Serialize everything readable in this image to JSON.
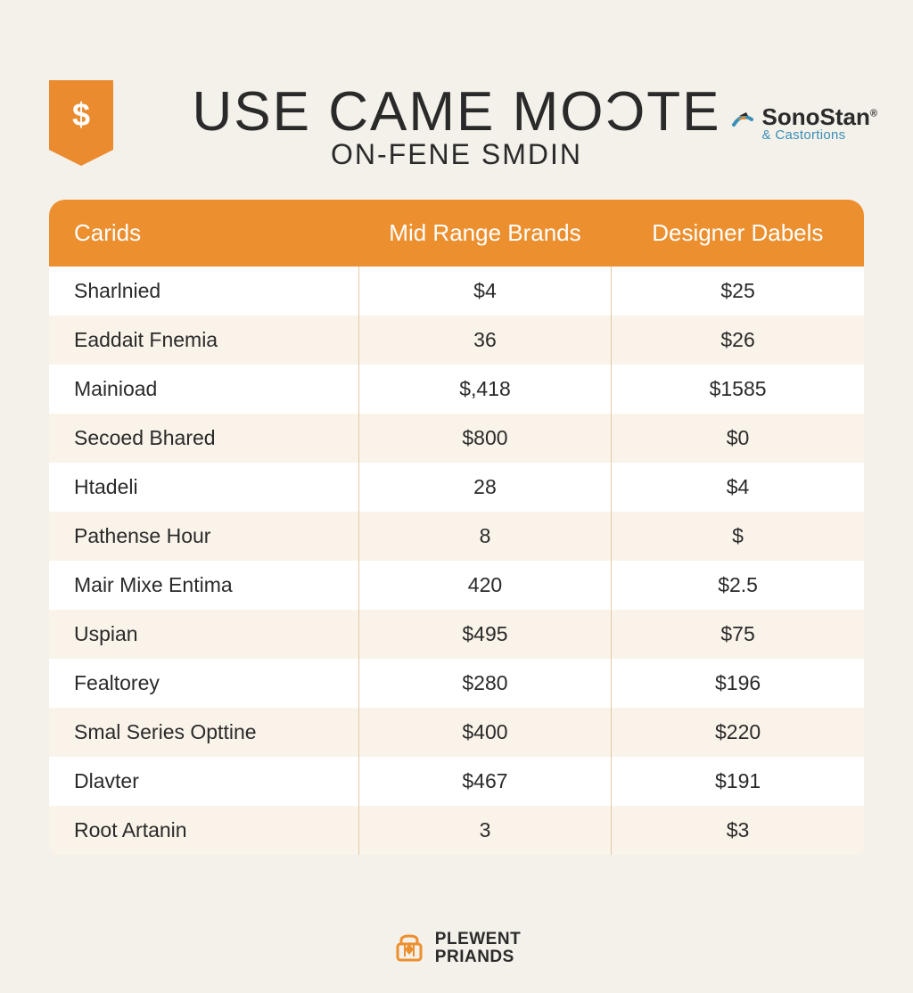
{
  "badge": {
    "symbol": "$"
  },
  "brand": {
    "name": "SonoStan",
    "sub": "& Castortions",
    "name_color": "#2b2b2b",
    "sub_color": "#3a8fb7",
    "icon_colors": {
      "top": "#2a2a2a",
      "mid": "#e98b2e",
      "arc": "#3a8fb7"
    }
  },
  "title": {
    "main": "USE CAME MOƆTE",
    "sub": "ON-FENE SMDIN",
    "main_fontsize": 62,
    "sub_fontsize": 32,
    "color": "#2a2a2a"
  },
  "table": {
    "header_bg": "#ec8f2e",
    "header_text_color": "#ffffff",
    "row_odd_bg": "#ffffff",
    "row_even_bg": "#faf3e9",
    "divider_color": "#e2c9a7",
    "columns": [
      "Carids",
      "Mid Range Brands",
      "Designer Dabels"
    ],
    "rows": [
      [
        "Sharlnied",
        "$4",
        "$25"
      ],
      [
        "Eaddait Fnemia",
        "36",
        "$26"
      ],
      [
        "Mainioad",
        "$,418",
        "$1585"
      ],
      [
        "Secoed Bhared",
        "$800",
        "$0"
      ],
      [
        "Htadeli",
        "28",
        "$4"
      ],
      [
        "Pathense Hour",
        "8",
        "$"
      ],
      [
        "Mair Mixe Entima",
        "420",
        "$2.5"
      ],
      [
        "Uspian",
        "$495",
        "$75"
      ],
      [
        "Fealtorey",
        "$280",
        "$196"
      ],
      [
        "Smal Series Opttine",
        "$400",
        "$220"
      ],
      [
        "Dlavter",
        "$467",
        "$191"
      ],
      [
        "Root Artanin",
        "3",
        "$3"
      ]
    ]
  },
  "footer": {
    "line1": "PLEWENT",
    "line2": "PRIANDS",
    "icon_color": "#ec8f2e"
  },
  "colors": {
    "page_bg": "#f4f0ea",
    "accent": "#ec8f2e"
  }
}
